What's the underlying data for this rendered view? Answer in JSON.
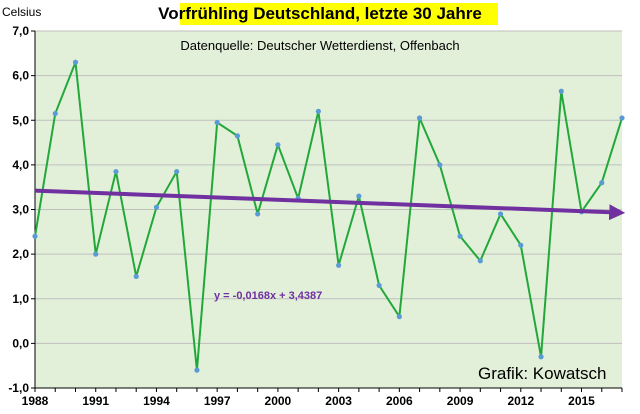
{
  "chart_data": {
    "type": "line",
    "title": "Vorfrühling Deutschland, letzte 30 Jahre",
    "subtitle": "Datenquelle: Deutscher Wetterdienst, Offenbach",
    "ylabel": "Celsius",
    "credit": "Grafik: Kowatsch",
    "x": [
      1988,
      1989,
      1990,
      1991,
      1992,
      1993,
      1994,
      1995,
      1996,
      1997,
      1998,
      1999,
      2000,
      2001,
      2002,
      2003,
      2004,
      2005,
      2006,
      2007,
      2008,
      2009,
      2010,
      2011,
      2012,
      2013,
      2014,
      2015,
      2016,
      2017
    ],
    "series": [
      {
        "values": [
          2.4,
          5.15,
          6.3,
          2.0,
          3.85,
          1.5,
          3.05,
          3.85,
          -0.6,
          4.95,
          4.65,
          2.9,
          4.45,
          3.25,
          5.2,
          1.75,
          3.3,
          1.3,
          0.6,
          5.05,
          4.0,
          2.4,
          1.85,
          2.9,
          2.2,
          -0.3,
          5.65,
          2.95,
          3.6,
          5.05
        ],
        "color": "#22a83a",
        "marker_color": "#5b9bd5"
      }
    ],
    "trendline": {
      "label": "y = -0,0168x + 3,4387",
      "slope": -0.0168,
      "intercept": 3.4387,
      "color": "#7030a0"
    },
    "ylim": [
      -1.0,
      7.0
    ],
    "yticks": [
      -1.0,
      0.0,
      1.0,
      2.0,
      3.0,
      4.0,
      5.0,
      6.0,
      7.0
    ],
    "ytick_labels": [
      "-1,0",
      "0,0",
      "1,0",
      "2,0",
      "3,0",
      "4,0",
      "5,0",
      "6,0",
      "7,0"
    ],
    "xlim": [
      1988,
      2017
    ],
    "xticks": [
      1988,
      1991,
      1994,
      1997,
      2000,
      2003,
      2006,
      2009,
      2012,
      2015
    ],
    "grid": true,
    "legend": "none",
    "colors": {
      "plot_background": "#e2f0d9",
      "grid": "#bfbfbf",
      "title_highlight": "#ffff00"
    }
  }
}
